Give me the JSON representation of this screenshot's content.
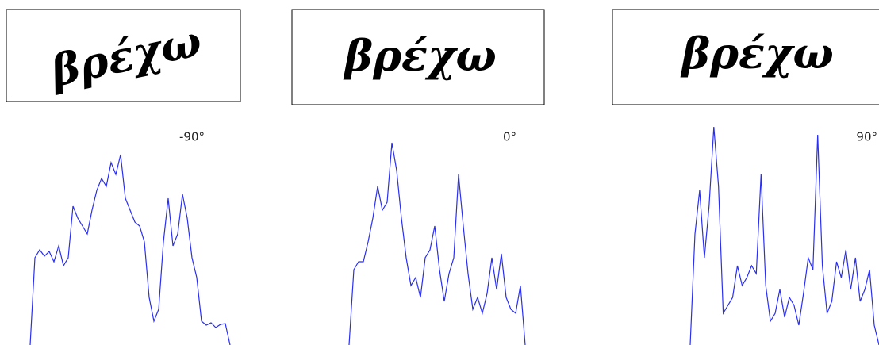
{
  "handwriting": [
    "βρέχω",
    "βρέχω",
    "βρέχω"
  ],
  "chart_data": [
    {
      "type": "line",
      "title": "-90°",
      "color": "#2a2ff0",
      "ylim": [
        0,
        280
      ],
      "values": [
        0,
        110,
        120,
        112,
        118,
        105,
        125,
        100,
        110,
        175,
        160,
        150,
        140,
        170,
        195,
        210,
        200,
        230,
        215,
        240,
        185,
        170,
        155,
        150,
        130,
        60,
        30,
        45,
        130,
        185,
        125,
        140,
        190,
        160,
        110,
        85,
        30,
        25,
        28,
        22,
        26,
        27,
        0
      ]
    },
    {
      "type": "line",
      "title": "0°",
      "color": "#2a2ff0",
      "ylim": [
        0,
        280
      ],
      "values": [
        0,
        95,
        105,
        105,
        130,
        160,
        200,
        170,
        180,
        255,
        220,
        160,
        110,
        75,
        85,
        60,
        110,
        120,
        150,
        95,
        55,
        90,
        110,
        215,
        150,
        90,
        45,
        60,
        40,
        65,
        110,
        70,
        115,
        60,
        45,
        40,
        75,
        0
      ]
    },
    {
      "type": "line",
      "title": "90°",
      "color": "#2a2ff0",
      "ylim": [
        0,
        280
      ],
      "values": [
        0,
        140,
        195,
        110,
        175,
        275,
        200,
        40,
        50,
        60,
        100,
        75,
        85,
        100,
        90,
        215,
        75,
        30,
        40,
        70,
        35,
        60,
        50,
        25,
        65,
        110,
        95,
        265,
        100,
        40,
        55,
        105,
        85,
        120,
        70,
        110,
        55,
        70,
        95,
        25,
        0
      ]
    }
  ]
}
